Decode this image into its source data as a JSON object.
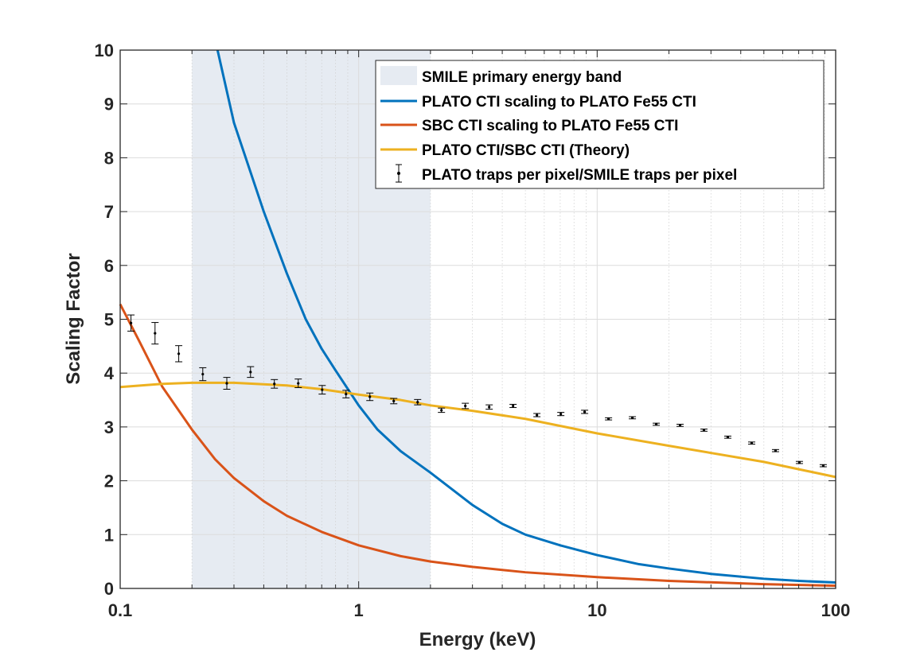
{
  "chart_data": {
    "type": "line",
    "xscale": "log",
    "xlim": [
      0.1,
      100
    ],
    "ylim": [
      0,
      10
    ],
    "xlabel": "Energy (keV)",
    "ylabel": "Scaling Factor",
    "x_ticks": [
      0.1,
      1,
      10,
      100
    ],
    "x_tick_labels": [
      "0.1",
      "1",
      "10",
      "100"
    ],
    "y_ticks": [
      0,
      1,
      2,
      3,
      4,
      5,
      6,
      7,
      8,
      9,
      10
    ],
    "y_tick_labels": [
      "0",
      "1",
      "2",
      "3",
      "4",
      "5",
      "6",
      "7",
      "8",
      "9",
      "10"
    ],
    "grid": true,
    "legend_position": "top-right",
    "band": {
      "name": "SMILE primary energy band",
      "x_range": [
        0.2,
        2
      ],
      "color": "#e6ebf2"
    },
    "series": [
      {
        "name": "PLATO CTI scaling to PLATO Fe55 CTI",
        "kind": "line",
        "color": "#0072BD",
        "x": [
          0.256,
          0.3,
          0.4,
          0.5,
          0.6,
          0.7,
          0.8,
          1,
          1.2,
          1.5,
          2,
          3,
          4,
          5,
          7,
          10,
          15,
          20,
          30,
          50,
          70,
          100
        ],
        "y": [
          10,
          8.65,
          7.0,
          5.85,
          5.0,
          4.45,
          4.05,
          3.4,
          2.95,
          2.55,
          2.15,
          1.55,
          1.2,
          1.0,
          0.8,
          0.62,
          0.45,
          0.37,
          0.27,
          0.18,
          0.14,
          0.11
        ]
      },
      {
        "name": "SBC CTI scaling to PLATO Fe55 CTI",
        "kind": "line",
        "color": "#D95319",
        "x": [
          0.1,
          0.12,
          0.15,
          0.2,
          0.25,
          0.3,
          0.4,
          0.5,
          0.7,
          1,
          1.5,
          2,
          3,
          5,
          10,
          20,
          50,
          100
        ],
        "y": [
          5.28,
          4.6,
          3.75,
          2.95,
          2.4,
          2.05,
          1.62,
          1.35,
          1.05,
          0.8,
          0.6,
          0.5,
          0.4,
          0.3,
          0.21,
          0.14,
          0.08,
          0.05
        ]
      },
      {
        "name": "PLATO CTI/SBC CTI (Theory)",
        "kind": "line",
        "color": "#EDB120",
        "x": [
          0.1,
          0.15,
          0.2,
          0.3,
          0.5,
          0.7,
          1,
          1.5,
          2,
          3,
          5,
          10,
          20,
          50,
          100
        ],
        "y": [
          3.74,
          3.8,
          3.82,
          3.82,
          3.77,
          3.7,
          3.6,
          3.5,
          3.4,
          3.3,
          3.15,
          2.88,
          2.65,
          2.35,
          2.07
        ]
      },
      {
        "name": "PLATO traps per pixel/SMILE traps per pixel",
        "kind": "errorbar",
        "color": "#000000",
        "x": [
          0.111,
          0.14,
          0.176,
          0.222,
          0.28,
          0.352,
          0.443,
          0.558,
          0.703,
          0.885,
          1.114,
          1.403,
          1.767,
          2.224,
          2.8,
          3.526,
          4.44,
          5.59,
          7.04,
          8.86,
          11.16,
          14.05,
          17.69,
          22.27,
          28.04,
          35.3,
          44.45,
          55.96,
          70.46,
          88.7
        ],
        "y": [
          4.93,
          4.74,
          4.36,
          3.98,
          3.81,
          4.02,
          3.8,
          3.81,
          3.69,
          3.61,
          3.56,
          3.48,
          3.46,
          3.31,
          3.39,
          3.37,
          3.39,
          3.22,
          3.24,
          3.28,
          3.15,
          3.17,
          3.05,
          3.03,
          2.94,
          2.81,
          2.7,
          2.56,
          2.34,
          2.28
        ],
        "error": [
          0.15,
          0.2,
          0.15,
          0.12,
          0.11,
          0.1,
          0.08,
          0.08,
          0.08,
          0.07,
          0.07,
          0.05,
          0.05,
          0.04,
          0.05,
          0.04,
          0.03,
          0.03,
          0.03,
          0.03,
          0.02,
          0.02,
          0.02,
          0.02,
          0.02,
          0.02,
          0.02,
          0.02,
          0.02,
          0.02
        ]
      }
    ],
    "legend": [
      "SMILE primary energy band",
      "PLATO CTI scaling to PLATO Fe55 CTI",
      "SBC CTI scaling to PLATO Fe55 CTI",
      "PLATO CTI/SBC CTI (Theory)",
      "PLATO traps per pixel/SMILE traps per pixel"
    ]
  }
}
